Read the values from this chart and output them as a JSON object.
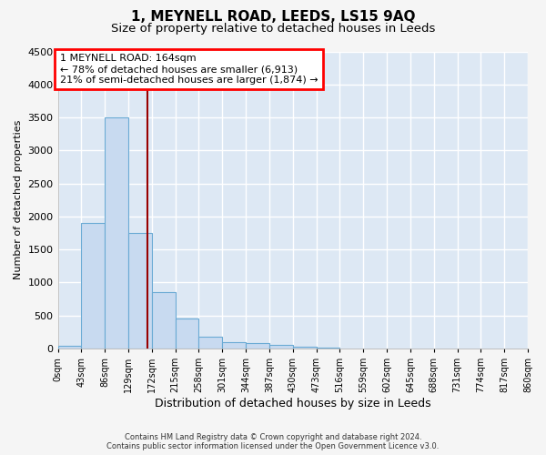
{
  "title": "1, MEYNELL ROAD, LEEDS, LS15 9AQ",
  "subtitle": "Size of property relative to detached houses in Leeds",
  "xlabel": "Distribution of detached houses by size in Leeds",
  "ylabel": "Number of detached properties",
  "bar_color": "#c8daf0",
  "bar_edge_color": "#6aaad4",
  "vline_color": "#990000",
  "vline_x": 164,
  "bin_edges": [
    0,
    43,
    86,
    129,
    172,
    215,
    258,
    301,
    344,
    387,
    430,
    473,
    516,
    559,
    602,
    645,
    688,
    731,
    774,
    817,
    860
  ],
  "bar_heights": [
    40,
    1900,
    3500,
    1750,
    850,
    450,
    175,
    100,
    80,
    50,
    30,
    10,
    2,
    0,
    0,
    0,
    0,
    0,
    0,
    0
  ],
  "tick_labels": [
    "0sqm",
    "43sqm",
    "86sqm",
    "129sqm",
    "172sqm",
    "215sqm",
    "258sqm",
    "301sqm",
    "344sqm",
    "387sqm",
    "430sqm",
    "473sqm",
    "516sqm",
    "559sqm",
    "602sqm",
    "645sqm",
    "688sqm",
    "731sqm",
    "774sqm",
    "817sqm",
    "860sqm"
  ],
  "ylim": [
    0,
    4500
  ],
  "yticks": [
    0,
    500,
    1000,
    1500,
    2000,
    2500,
    3000,
    3500,
    4000,
    4500
  ],
  "annotation_title": "1 MEYNELL ROAD: 164sqm",
  "annotation_line1": "← 78% of detached houses are smaller (6,913)",
  "annotation_line2": "21% of semi-detached houses are larger (1,874) →",
  "footer_line1": "Contains HM Land Registry data © Crown copyright and database right 2024.",
  "footer_line2": "Contains public sector information licensed under the Open Government Licence v3.0.",
  "plot_bg_color": "#dde8f4",
  "fig_bg_color": "#f5f5f5",
  "grid_color": "#ffffff",
  "title_fontsize": 11,
  "subtitle_fontsize": 9.5,
  "xlabel_fontsize": 9,
  "ylabel_fontsize": 8
}
